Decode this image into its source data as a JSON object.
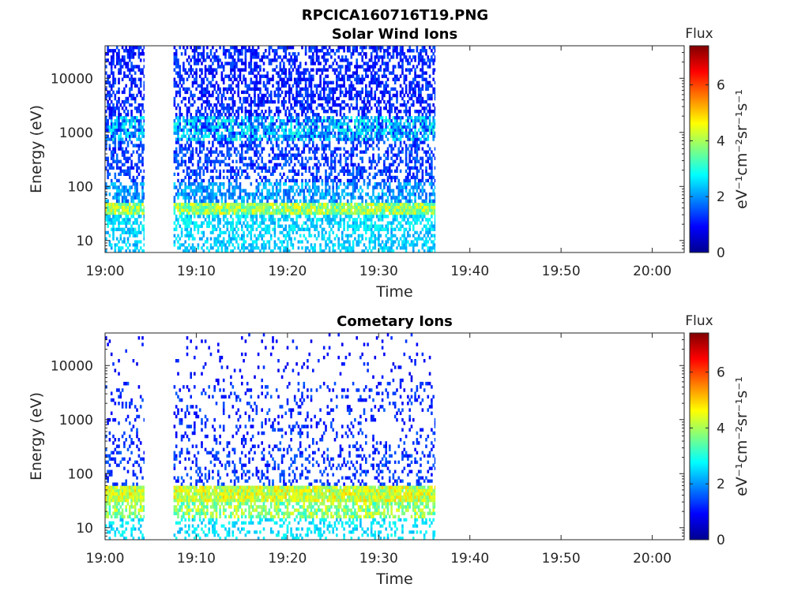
{
  "title": "RPCICA160716T19.PNG",
  "colormap": [
    "#00008f",
    "#0000ff",
    "#0080ff",
    "#00ffff",
    "#80ff80",
    "#ffff00",
    "#ff8000",
    "#ff0000",
    "#800000"
  ],
  "chart_data": [
    {
      "type": "heatmap",
      "title": "Solar Wind Ions",
      "xlabel": "Time",
      "ylabel": "Energy (eV)",
      "x_ticks": [
        "19:00",
        "19:10",
        "19:20",
        "19:30",
        "19:40",
        "19:50",
        "20:00"
      ],
      "x_tick_minutes": [
        0,
        10,
        20,
        30,
        40,
        50,
        60
      ],
      "xlim_minutes": [
        0,
        63.5
      ],
      "y_scale": "log",
      "ylim": [
        6,
        40000
      ],
      "y_ticks": [
        "10",
        "100",
        "1000",
        "10000"
      ],
      "y_tick_values": [
        10,
        100,
        1000,
        10000
      ],
      "colorbar": {
        "title": "Flux",
        "label": "eV⁻¹cm⁻²sr⁻¹s⁻¹",
        "range": [
          0,
          7.4
        ],
        "ticks": [
          "0",
          "2",
          "4",
          "6"
        ],
        "tick_values": [
          0,
          2,
          4,
          6
        ]
      },
      "data_segments_minutes": [
        [
          0,
          4.3
        ],
        [
          7.5,
          36.2
        ]
      ],
      "data_gaps_minutes": [
        [
          4.3,
          7.5
        ],
        [
          36.2,
          63.5
        ]
      ],
      "bands": [
        {
          "e_min": 30,
          "e_max": 50,
          "flux_min": 3.0,
          "flux_max": 4.8,
          "density": 0.95
        },
        {
          "e_min": 15,
          "e_max": 30,
          "flux_min": 2.0,
          "flux_max": 3.0,
          "density": 0.6
        },
        {
          "e_min": 6,
          "e_max": 15,
          "flux_min": 2.0,
          "flux_max": 2.8,
          "density": 0.45
        },
        {
          "e_min": 50,
          "e_max": 120,
          "flux_min": 1.4,
          "flux_max": 2.6,
          "density": 0.55
        },
        {
          "e_min": 120,
          "e_max": 700,
          "flux_min": 0.9,
          "flux_max": 1.8,
          "density": 0.45
        },
        {
          "e_min": 700,
          "e_max": 2000,
          "flux_min": 1.0,
          "flux_max": 3.2,
          "density": 0.75
        },
        {
          "e_min": 2000,
          "e_max": 40000,
          "flux_min": 0.7,
          "flux_max": 1.6,
          "density": 0.5
        }
      ]
    },
    {
      "type": "heatmap",
      "title": "Cometary Ions",
      "xlabel": "Time",
      "ylabel": "Energy (eV)",
      "x_ticks": [
        "19:00",
        "19:10",
        "19:20",
        "19:30",
        "19:40",
        "19:50",
        "20:00"
      ],
      "x_tick_minutes": [
        0,
        10,
        20,
        30,
        40,
        50,
        60
      ],
      "xlim_minutes": [
        0,
        63.5
      ],
      "y_scale": "log",
      "ylim": [
        6,
        40000
      ],
      "y_ticks": [
        "10",
        "100",
        "1000",
        "10000"
      ],
      "y_tick_values": [
        10,
        100,
        1000,
        10000
      ],
      "colorbar": {
        "title": "Flux",
        "label": "eV⁻¹cm⁻²sr⁻¹s⁻¹",
        "range": [
          0,
          7.4
        ],
        "ticks": [
          "0",
          "2",
          "4",
          "6"
        ],
        "tick_values": [
          0,
          2,
          4,
          6
        ]
      },
      "data_segments_minutes": [
        [
          0,
          4.3
        ],
        [
          7.5,
          36.2
        ]
      ],
      "data_gaps_minutes": [
        [
          4.3,
          7.5
        ],
        [
          36.2,
          63.5
        ]
      ],
      "bands": [
        {
          "e_min": 30,
          "e_max": 60,
          "flux_min": 3.5,
          "flux_max": 5.0,
          "density": 0.95
        },
        {
          "e_min": 15,
          "e_max": 30,
          "flux_min": 3.0,
          "flux_max": 4.6,
          "density": 0.6
        },
        {
          "e_min": 6,
          "e_max": 15,
          "flux_min": 2.2,
          "flux_max": 3.0,
          "density": 0.3
        },
        {
          "e_min": 60,
          "e_max": 300,
          "flux_min": 0.9,
          "flux_max": 1.7,
          "density": 0.25
        },
        {
          "e_min": 300,
          "e_max": 5000,
          "flux_min": 0.8,
          "flux_max": 1.6,
          "density": 0.15
        },
        {
          "e_min": 5000,
          "e_max": 40000,
          "flux_min": 0.7,
          "flux_max": 1.3,
          "density": 0.05
        }
      ]
    }
  ]
}
